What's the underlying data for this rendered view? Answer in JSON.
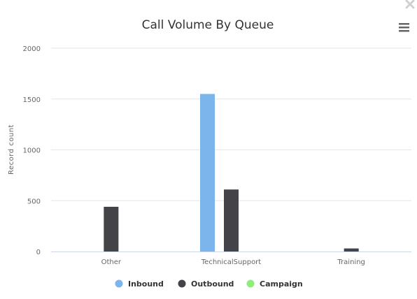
{
  "controls": {
    "close_icon": "close-icon",
    "menu_icon": "hamburger-menu-icon"
  },
  "chart_data": {
    "type": "bar",
    "title": "Call Volume By Queue",
    "xlabel": "",
    "ylabel": "Record count",
    "categories": [
      "Other",
      "TechnicalSupport",
      "Training"
    ],
    "series": [
      {
        "name": "Inbound",
        "color": "#7cb5ec",
        "values": [
          0,
          1550,
          0
        ]
      },
      {
        "name": "Outbound",
        "color": "#434348",
        "values": [
          440,
          610,
          30
        ]
      },
      {
        "name": "Campaign",
        "color": "#90ed7d",
        "values": [
          0,
          0,
          0
        ]
      }
    ],
    "ylim": [
      0,
      2000
    ],
    "yticks": [
      0,
      500,
      1000,
      1500,
      2000
    ],
    "grid": true,
    "legend_position": "bottom-center"
  }
}
